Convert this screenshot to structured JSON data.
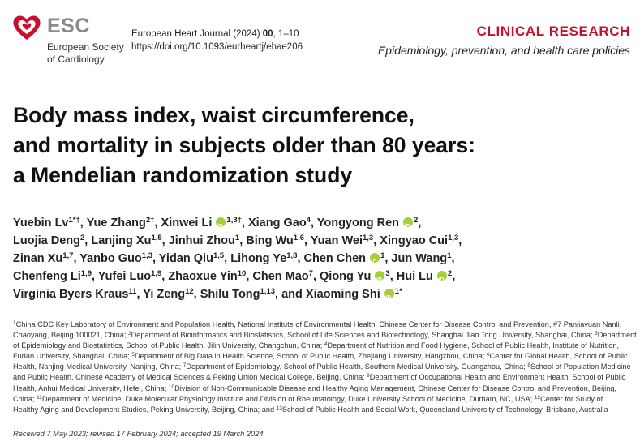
{
  "header": {
    "logo_abbr": "ESC",
    "logo_line1": "European Society",
    "logo_line2": "of Cardiology",
    "journal_prefix": "European Heart Journal (2024) ",
    "journal_volume": "00",
    "journal_pages": ", 1–10",
    "doi": "https://doi.org/10.1093/eurheartj/ehae206",
    "section": "CLINICAL RESEARCH",
    "subsection": "Epidemiology, prevention, and health care policies",
    "logo_color": "#c8102e"
  },
  "title_lines": [
    "Body mass index, waist circumference,",
    "and mortality in subjects older than 80 years:",
    "a Mendelian randomization study"
  ],
  "authors": {
    "line1": [
      "Yuebin Lv",
      "1",
      "*†",
      ", Yue Zhang",
      "2†",
      ", Xinwei Li ",
      " 1,3†",
      ", Xiang Gao",
      "4",
      ", Yongyong Ren ",
      " 2",
      ","
    ],
    "l1": {
      "a": "Yuebin Lv",
      "a_sup": "1",
      "a_mark": "*†",
      "b": ", Yue Zhang",
      "b_sup": "2†",
      "c": ", Xinwei Li ",
      "c_sup": "1,3†",
      "d": ", Xiang Gao",
      "d_sup": "4",
      "e": ", Yongyong Ren ",
      "e_sup": "2",
      "end": ","
    },
    "l2": {
      "a": "Luojia Deng",
      "a_sup": "2",
      "b": ", Lanjing Xu",
      "b_sup": "1,5",
      "c": ", Jinhui Zhou",
      "c_sup": "1",
      "d": ", Bing Wu",
      "d_sup": "1,6",
      "e": ", Yuan Wei",
      "e_sup": "1,3",
      "f": ", Xingyao Cui",
      "f_sup": "1,3",
      "end": ","
    },
    "l3": {
      "a": "Zinan Xu",
      "a_sup": "1,7",
      "b": ", Yanbo Guo",
      "b_sup": "1,3",
      "c": ", Yidan Qiu",
      "c_sup": "1,5",
      "d": ", Lihong Ye",
      "d_sup": "1,8",
      "e": ", Chen Chen ",
      "e_sup": "1",
      "f": ", Jun Wang",
      "f_sup": "1",
      "end": ","
    },
    "l4": {
      "a": "Chenfeng Li",
      "a_sup": "1,9",
      "b": ", Yufei Luo",
      "b_sup": "1,9",
      "c": ", Zhaoxue Yin",
      "c_sup": "10",
      "d": ", Chen Mao",
      "d_sup": "7",
      "e": ", Qiong Yu ",
      "e_sup": "3",
      "f": ", Hui Lu ",
      "f_sup": "2",
      "end": ","
    },
    "l5": {
      "a": "Virginia Byers Kraus",
      "a_sup": "11",
      "b": ", Yi Zeng",
      "b_sup": "12",
      "c": ", Shilu Tong",
      "c_sup": "1,13",
      "d": ", and Xiaoming Shi ",
      "d_sup": "1",
      "d_mark": "*"
    }
  },
  "affiliations": {
    "l1": "China CDC Key Laboratory of Environment and Population Health, National Institute of Environmental Health, Chinese Center for Disease Control and Prevention, #7 Panjiayuan Nanli,",
    "l1_sup": "1",
    "l2a": "Chaoyang, Beijing 100021, China; ",
    "l2_sup1": "2",
    "l2b": "Department of Bioinformatics and Biostatistics, School of Life Sciences and Biotechnology, Shanghai Jiao Tong University, Shanghai, China; ",
    "l2_sup2": "3",
    "l2c": "Department",
    "l3a": "of Epidemiology and Biostatistics, School of Public Health, Jilin University, Changchun, China; ",
    "l3_sup1": "4",
    "l3b": "Department of Nutrition and Food Hygiene, School of Public Health, Institute of Nutrition,",
    "l4a": "Fudan University, Shanghai, China; ",
    "l4_sup1": "5",
    "l4b": "Department of Big Data in Health Science, School of Public Health, Zhejiang University, Hangzhou, China; ",
    "l4_sup2": "6",
    "l4c": "Center for Global Health, School of Public",
    "l5a": "Health, Nanjing Medical University, Nanjing, China; ",
    "l5_sup1": "7",
    "l5b": "Department of Epidemiology, School of Public Health, Southern Medical University, Guangzhou, China; ",
    "l5_sup2": "8",
    "l5c": "School of Population Medicine",
    "l6a": "and Public Health, Chinese Academy of Medical Sciences & Peking Union Medical College, Beijing, China; ",
    "l6_sup1": "9",
    "l6b": "Department of Occupational Health and Environment Health, School of Public",
    "l7a": "Health, Anhui Medical University, Hefei, China; ",
    "l7_sup1": "10",
    "l7b": "Division of Non-Communicable Disease and Healthy Aging Management, Chinese Center for Disease Control and Prevention, Beijing,",
    "l8a": "China; ",
    "l8_sup1": "11",
    "l8b": "Department of Medicine, Duke Molecular Physiology Institute and Division of Rheumatology, Duke University School of Medicine, Durham, NC, USA; ",
    "l8_sup2": "12",
    "l8c": "Center for Study of",
    "l9a": "Healthy Aging and Development Studies, Peking University, Beijing, China; and ",
    "l9_sup1": "13",
    "l9b": "School of Public Health and Social Work, Queensland University of Technology, Brisbane, Australia"
  },
  "received": "Received 7 May 2023; revised 17 February 2024; accepted 19 March 2024"
}
